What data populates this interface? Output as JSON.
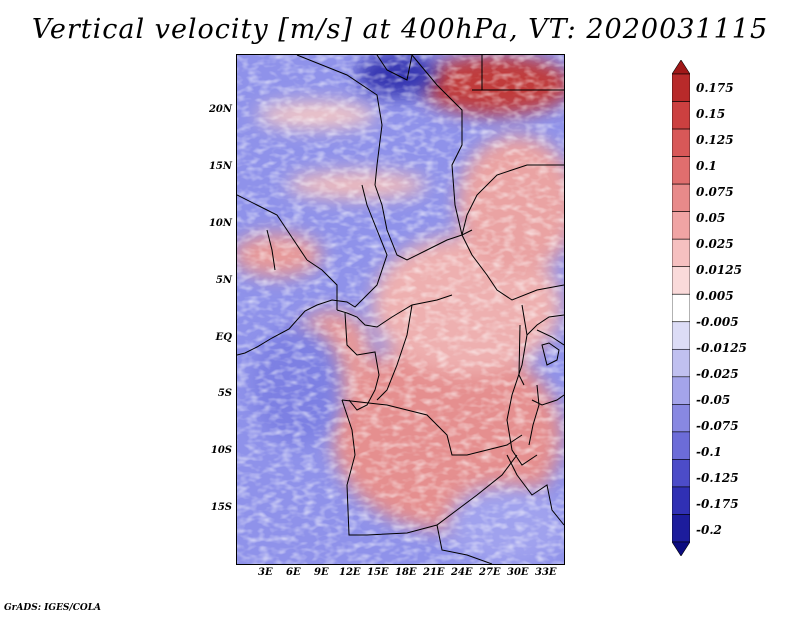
{
  "title": "Vertical velocity [m/s] at 400hPa, VT: 2020031115",
  "lat_labels": [
    "20N",
    "15N",
    "10N",
    "5N",
    "EQ",
    "5S",
    "10S",
    "15S"
  ],
  "lon_labels": [
    "3E",
    "6E",
    "9E",
    "12E",
    "15E",
    "18E",
    "21E",
    "24E",
    "27E",
    "30E",
    "33E"
  ],
  "colorbar": {
    "labels": [
      "0.175",
      "0.15",
      "0.125",
      "0.1",
      "0.075",
      "0.05",
      "0.025",
      "0.0125",
      "0.005",
      "-0.005",
      "-0.0125",
      "-0.025",
      "-0.05",
      "-0.075",
      "-0.1",
      "-0.125",
      "-0.175",
      "-0.2"
    ],
    "colors": [
      "#a01818",
      "#b82a2a",
      "#cc4040",
      "#d85858",
      "#e06e6e",
      "#e88a8a",
      "#f0a4a4",
      "#f6c0c0",
      "#fadada",
      "#ffffff",
      "#dcdcf6",
      "#c0c0f0",
      "#a4a4ea",
      "#8888e2",
      "#6c6cd8",
      "#4c4cc8",
      "#3030b4",
      "#1c1c9c",
      "#0c0c80"
    ]
  },
  "footer": "GrADS: IGES/COLA"
}
